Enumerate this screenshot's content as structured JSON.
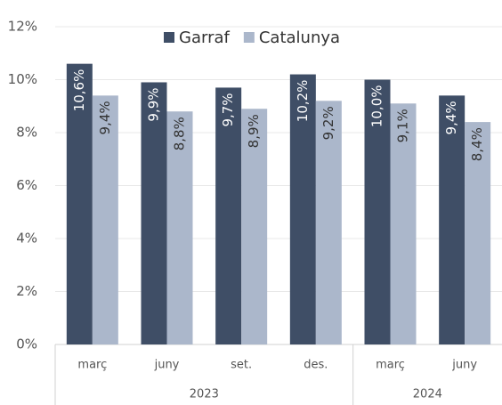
{
  "chart_data": {
    "type": "bar",
    "categories": [
      "març",
      "juny",
      "set.",
      "des.",
      "març",
      "juny"
    ],
    "x_groups": [
      {
        "label": "2023",
        "count": 4
      },
      {
        "label": "2024",
        "count": 2
      }
    ],
    "series": [
      {
        "name": "Garraf",
        "color": "#3f4e66",
        "values": [
          10.6,
          9.9,
          9.7,
          10.2,
          10.0,
          9.4
        ],
        "value_labels": [
          "10,6%",
          "9,9%",
          "9,7%",
          "10,2%",
          "10,0%",
          "9,4%"
        ]
      },
      {
        "name": "Catalunya",
        "color": "#abb7cb",
        "values": [
          9.4,
          8.8,
          8.9,
          9.2,
          9.1,
          8.4
        ],
        "value_labels": [
          "9,4%",
          "8,8%",
          "8,9%",
          "9,2%",
          "9,1%",
          "8,4%"
        ]
      }
    ],
    "ylim": [
      0,
      12
    ],
    "yticks": [
      {
        "value": 0,
        "label": "0%"
      },
      {
        "value": 2,
        "label": "2%"
      },
      {
        "value": 4,
        "label": "4%"
      },
      {
        "value": 6,
        "label": "6%"
      },
      {
        "value": 8,
        "label": "8%"
      },
      {
        "value": 10,
        "label": "10%"
      },
      {
        "value": 12,
        "label": "12%"
      }
    ],
    "grid": true,
    "legend": "top"
  }
}
